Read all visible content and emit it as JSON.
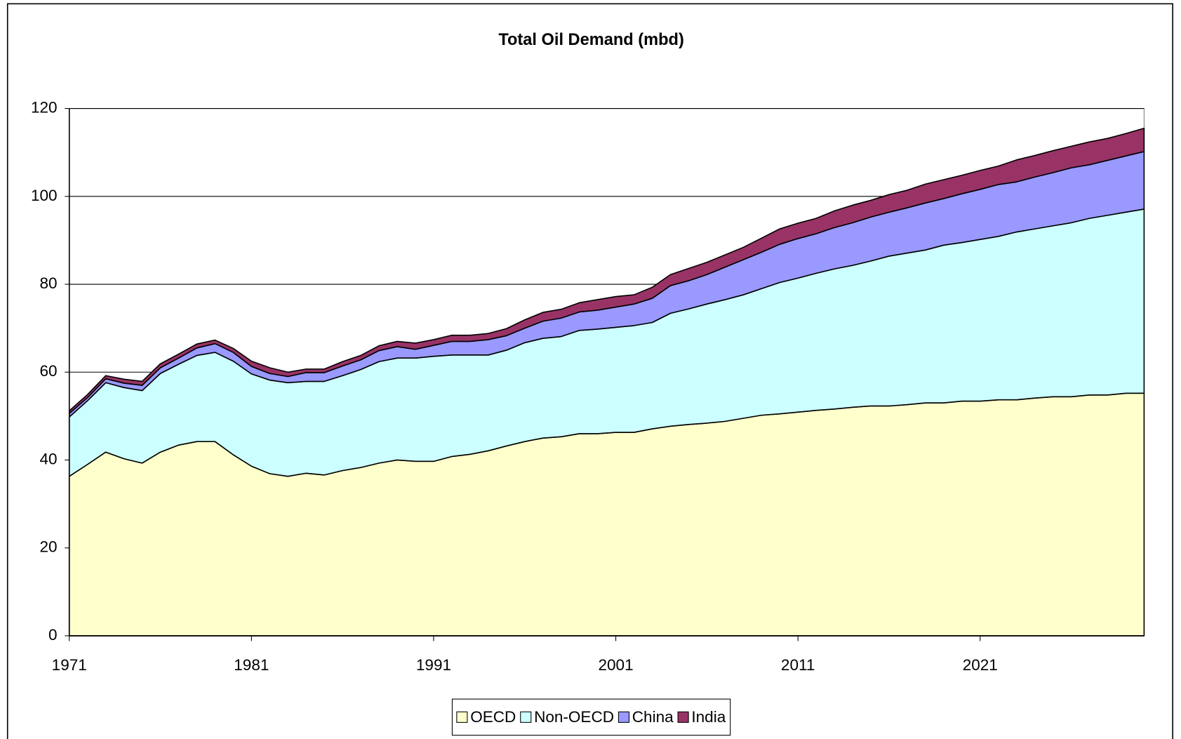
{
  "chart_data": {
    "type": "stacked-area",
    "title": "Total Oil Demand (mbd)",
    "x": [
      1971,
      1972,
      1973,
      1974,
      1975,
      1976,
      1977,
      1978,
      1979,
      1980,
      1981,
      1982,
      1983,
      1984,
      1985,
      1986,
      1987,
      1988,
      1989,
      1990,
      1991,
      1992,
      1993,
      1994,
      1995,
      1996,
      1997,
      1998,
      1999,
      2000,
      2001,
      2002,
      2003,
      2004,
      2005,
      2006,
      2007,
      2008,
      2009,
      2010,
      2011,
      2012,
      2013,
      2014,
      2015,
      2016,
      2017,
      2018,
      2019,
      2020,
      2021,
      2022,
      2023,
      2024,
      2025,
      2026,
      2027,
      2028,
      2029,
      2030
    ],
    "xlim": [
      1971,
      2030
    ],
    "xticks": [
      1971,
      1981,
      1991,
      2001,
      2011,
      2021
    ],
    "ylim": [
      0,
      120
    ],
    "yticks": [
      0,
      20,
      40,
      60,
      80,
      100,
      120
    ],
    "grid": true,
    "legend": "bottom",
    "series": [
      {
        "name": "OECD",
        "color": "#ffffcc",
        "values": [
          36.3,
          39,
          41.8,
          40.3,
          39.3,
          41.8,
          43.4,
          44.2,
          44.2,
          41.2,
          38.6,
          36.9,
          36.3,
          37.0,
          36.6,
          37.6,
          38.3,
          39.3,
          40.0,
          39.7,
          39.7,
          40.8,
          41.3,
          42.1,
          43.2,
          44.2,
          45.0,
          45.3,
          46.0,
          46.0,
          46.3,
          46.3,
          47.1,
          47.7,
          48.1,
          48.4,
          48.8,
          49.5,
          50.2,
          50.5,
          50.9,
          51.3,
          51.6,
          52.0,
          52.3,
          52.3,
          52.6,
          53.0,
          53.0,
          53.4,
          53.4,
          53.7,
          53.7,
          54.1,
          54.4,
          54.4,
          54.8,
          54.8,
          55.2,
          55.2
        ]
      },
      {
        "name": "Non-OECD",
        "color": "#ccffff",
        "values": [
          13.5,
          14.5,
          15.8,
          16.2,
          16.5,
          17.9,
          18.4,
          19.6,
          20.3,
          21.3,
          21.0,
          21.3,
          21.3,
          20.9,
          21.3,
          21.6,
          22.3,
          23.1,
          23.2,
          23.5,
          23.9,
          23.1,
          22.6,
          21.8,
          21.8,
          22.5,
          22.7,
          22.8,
          23.5,
          23.8,
          23.9,
          24.3,
          24.2,
          25.7,
          26.3,
          27.1,
          27.7,
          28.1,
          28.8,
          29.9,
          30.5,
          31.2,
          31.9,
          32.3,
          33.0,
          34.1,
          34.5,
          34.8,
          35.9,
          36.1,
          36.8,
          37.2,
          38.2,
          38.5,
          38.9,
          39.6,
          40.2,
          40.9,
          41.2,
          41.9
        ]
      },
      {
        "name": "China",
        "color": "#9999ff",
        "values": [
          0.8,
          0.7,
          0.9,
          1.0,
          1.2,
          1.3,
          1.4,
          1.7,
          2.0,
          2.0,
          1.7,
          1.5,
          1.4,
          2.0,
          2.0,
          2.2,
          2.2,
          2.5,
          2.6,
          2.0,
          2.5,
          3.1,
          3.1,
          3.5,
          3.3,
          3.3,
          3.9,
          4.2,
          4.2,
          4.3,
          4.6,
          4.9,
          5.5,
          6.3,
          6.4,
          6.7,
          7.4,
          8.0,
          8.3,
          8.7,
          9.0,
          9.0,
          9.4,
          9.7,
          10.0,
          10.0,
          10.3,
          10.7,
          10.6,
          11.1,
          11.4,
          11.8,
          11.4,
          11.8,
          12.1,
          12.5,
          12.2,
          12.5,
          12.8,
          13.1
        ]
      },
      {
        "name": "India",
        "color": "#993366",
        "values": [
          0.6,
          0.7,
          0.7,
          0.9,
          0.9,
          0.9,
          0.9,
          0.9,
          0.8,
          0.9,
          1.2,
          1.3,
          1.0,
          0.8,
          0.8,
          1.0,
          1.0,
          1.1,
          1.2,
          1.4,
          1.3,
          1.4,
          1.4,
          1.4,
          1.6,
          1.9,
          2.0,
          2.0,
          2.1,
          2.4,
          2.4,
          2.1,
          2.5,
          2.5,
          2.8,
          2.8,
          2.8,
          2.8,
          3.2,
          3.5,
          3.5,
          3.5,
          3.8,
          4.0,
          3.8,
          4.0,
          4.0,
          4.3,
          4.3,
          4.2,
          4.3,
          4.2,
          5.0,
          4.9,
          5.0,
          4.9,
          5.2,
          5.0,
          5.1,
          5.3
        ]
      }
    ]
  }
}
